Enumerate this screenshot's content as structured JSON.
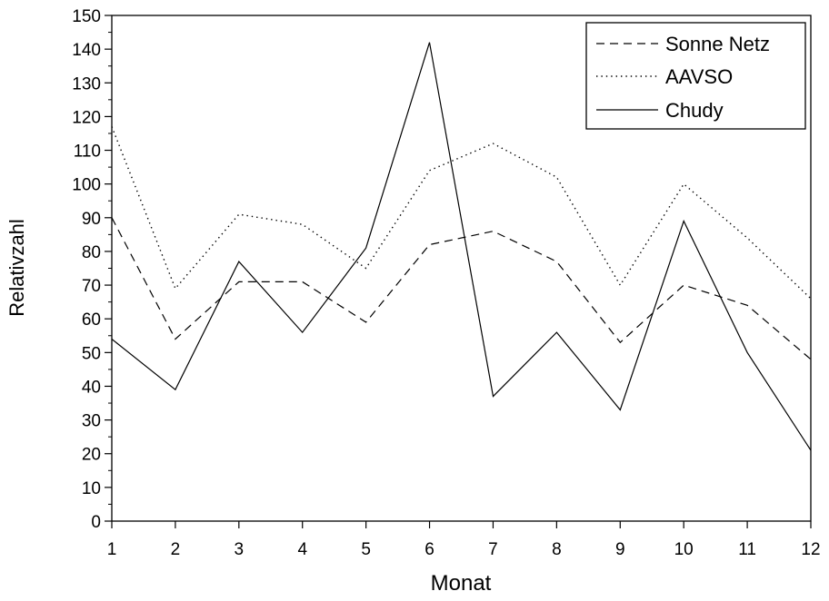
{
  "chart_data": {
    "type": "line",
    "title": "",
    "xlabel": "Monat",
    "ylabel": "Relativzahl",
    "x": [
      1,
      2,
      3,
      4,
      5,
      6,
      7,
      8,
      9,
      10,
      11,
      12
    ],
    "xlim": [
      1,
      12
    ],
    "ylim": [
      0,
      150
    ],
    "y_ticks": [
      0,
      10,
      20,
      30,
      40,
      50,
      60,
      70,
      80,
      90,
      100,
      110,
      120,
      130,
      140,
      150
    ],
    "x_ticks": [
      1,
      2,
      3,
      4,
      5,
      6,
      7,
      8,
      9,
      10,
      11,
      12
    ],
    "grid": false,
    "legend_position": "top-right",
    "series": [
      {
        "name": "Sonne Netz",
        "style": "dashed",
        "color": "#000000",
        "values": [
          90,
          54,
          71,
          71,
          59,
          82,
          86,
          77,
          53,
          70,
          64,
          48
        ]
      },
      {
        "name": "AAVSO",
        "style": "dotted",
        "color": "#000000",
        "values": [
          117,
          69,
          91,
          88,
          75,
          104,
          112,
          102,
          70,
          100,
          84,
          66
        ]
      },
      {
        "name": "Chudy",
        "style": "solid",
        "color": "#000000",
        "values": [
          54,
          39,
          77,
          56,
          81,
          142,
          37,
          56,
          33,
          89,
          50,
          21
        ]
      }
    ]
  }
}
